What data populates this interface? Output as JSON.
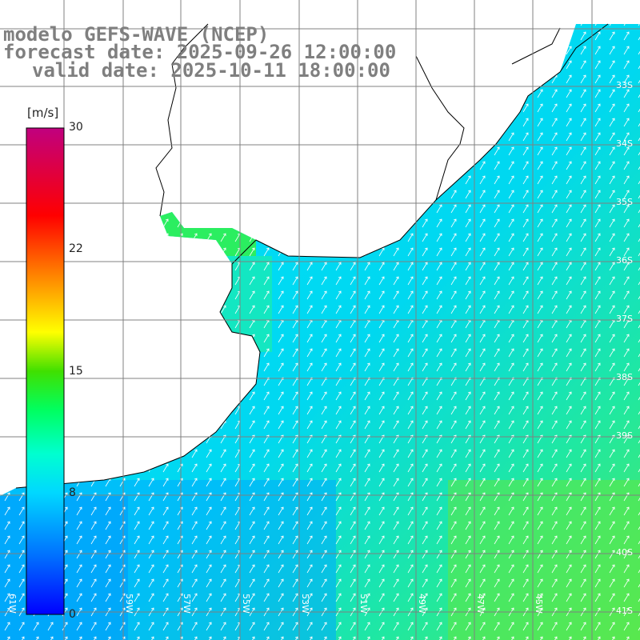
{
  "title": {
    "model": "modelo GEFS-WAVE (NCEP)",
    "forecast": "forecast date: 2025-09-26 12:00:00",
    "valid": "valid date: 2025-10-11 18:00:00"
  },
  "colorbar": {
    "unit": "[m/s]",
    "ticks": [
      "30",
      "22",
      "15",
      "8",
      "0"
    ],
    "colors": [
      "#0000ff",
      "#0088ff",
      "#00e0ff",
      "#00ff7f",
      "#00d000",
      "#ffff00",
      "#ff8000",
      "#ff0000",
      "#c0007f"
    ]
  },
  "map": {
    "field": "wind speed with direction arrows",
    "land_color": "#ffffff",
    "grid_color": "#808080",
    "arrow_color": "#ffffff",
    "lon_labels": [
      "61W",
      "59W",
      "57W",
      "55W",
      "53W",
      "51W",
      "49W",
      "47W",
      "45W"
    ],
    "lat_labels": [
      "33S",
      "34S",
      "35S",
      "36S",
      "37S",
      "38S",
      "39S",
      "40S",
      "41S"
    ]
  }
}
